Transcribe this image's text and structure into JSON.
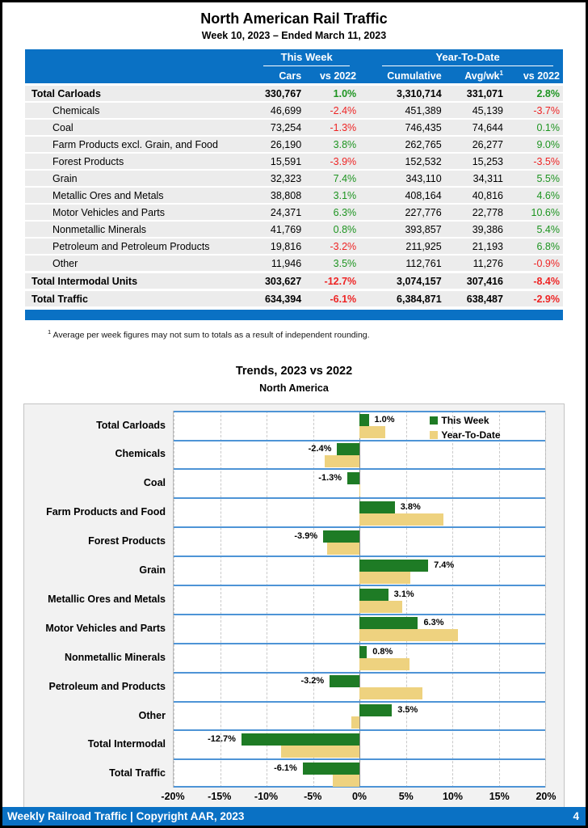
{
  "page": {
    "title": "North American Rail Traffic",
    "subtitle": "Week 10, 2023 – Ended March 11, 2023",
    "footnote_sup": "1",
    "footnote_text": "Average per week figures may not sum to totals as a result of independent rounding.",
    "footer_left": "Weekly Railroad Traffic | Copyright AAR, 2023",
    "footer_page": "4"
  },
  "colors": {
    "header_blue": "#0a71c4",
    "row_gray": "#ececec",
    "positive_green": "#1d9420",
    "negative_red": "#ee2424",
    "bar_green": "#1e7b25",
    "bar_tan": "#eed27f",
    "band_line_blue": "#4e94d6"
  },
  "table": {
    "group_headers": {
      "this_week": "This Week",
      "ytd": "Year-To-Date"
    },
    "col_headers": {
      "cars": "Cars",
      "vs2022_week": "vs 2022",
      "cumulative": "Cumulative",
      "avgwk": "Avg/wk",
      "avgwk_sup": "1",
      "vs2022_ytd": "vs 2022"
    },
    "rows": [
      {
        "label": "Total Carloads",
        "total": true,
        "cars": "330,767",
        "vs_week": "1.0%",
        "vs_week_dir": "pos",
        "cumulative": "3,310,714",
        "avgwk": "331,071",
        "vs_ytd": "2.8%",
        "vs_ytd_dir": "pos"
      },
      {
        "label": "Chemicals",
        "total": false,
        "cars": "46,699",
        "vs_week": "-2.4%",
        "vs_week_dir": "neg",
        "cumulative": "451,389",
        "avgwk": "45,139",
        "vs_ytd": "-3.7%",
        "vs_ytd_dir": "neg"
      },
      {
        "label": "Coal",
        "total": false,
        "cars": "73,254",
        "vs_week": "-1.3%",
        "vs_week_dir": "neg",
        "cumulative": "746,435",
        "avgwk": "74,644",
        "vs_ytd": "0.1%",
        "vs_ytd_dir": "pos"
      },
      {
        "label": "Farm Products excl. Grain, and Food",
        "total": false,
        "cars": "26,190",
        "vs_week": "3.8%",
        "vs_week_dir": "pos",
        "cumulative": "262,765",
        "avgwk": "26,277",
        "vs_ytd": "9.0%",
        "vs_ytd_dir": "pos"
      },
      {
        "label": "Forest Products",
        "total": false,
        "cars": "15,591",
        "vs_week": "-3.9%",
        "vs_week_dir": "neg",
        "cumulative": "152,532",
        "avgwk": "15,253",
        "vs_ytd": "-3.5%",
        "vs_ytd_dir": "neg"
      },
      {
        "label": "Grain",
        "total": false,
        "cars": "32,323",
        "vs_week": "7.4%",
        "vs_week_dir": "pos",
        "cumulative": "343,110",
        "avgwk": "34,311",
        "vs_ytd": "5.5%",
        "vs_ytd_dir": "pos"
      },
      {
        "label": "Metallic Ores and Metals",
        "total": false,
        "cars": "38,808",
        "vs_week": "3.1%",
        "vs_week_dir": "pos",
        "cumulative": "408,164",
        "avgwk": "40,816",
        "vs_ytd": "4.6%",
        "vs_ytd_dir": "pos"
      },
      {
        "label": "Motor Vehicles and Parts",
        "total": false,
        "cars": "24,371",
        "vs_week": "6.3%",
        "vs_week_dir": "pos",
        "cumulative": "227,776",
        "avgwk": "22,778",
        "vs_ytd": "10.6%",
        "vs_ytd_dir": "pos"
      },
      {
        "label": "Nonmetallic Minerals",
        "total": false,
        "cars": "41,769",
        "vs_week": "0.8%",
        "vs_week_dir": "pos",
        "cumulative": "393,857",
        "avgwk": "39,386",
        "vs_ytd": "5.4%",
        "vs_ytd_dir": "pos"
      },
      {
        "label": "Petroleum and Petroleum Products",
        "total": false,
        "cars": "19,816",
        "vs_week": "-3.2%",
        "vs_week_dir": "neg",
        "cumulative": "211,925",
        "avgwk": "21,193",
        "vs_ytd": "6.8%",
        "vs_ytd_dir": "pos"
      },
      {
        "label": "Other",
        "total": false,
        "cars": "11,946",
        "vs_week": "3.5%",
        "vs_week_dir": "pos",
        "cumulative": "112,761",
        "avgwk": "11,276",
        "vs_ytd": "-0.9%",
        "vs_ytd_dir": "neg"
      },
      {
        "label": "Total Intermodal Units",
        "total": true,
        "cars": "303,627",
        "vs_week": "-12.7%",
        "vs_week_dir": "neg",
        "cumulative": "3,074,157",
        "avgwk": "307,416",
        "vs_ytd": "-8.4%",
        "vs_ytd_dir": "neg"
      },
      {
        "label": "Total Traffic",
        "total": true,
        "cars": "634,394",
        "vs_week": "-6.1%",
        "vs_week_dir": "neg",
        "cumulative": "6,384,871",
        "avgwk": "638,487",
        "vs_ytd": "-2.9%",
        "vs_ytd_dir": "neg"
      }
    ]
  },
  "chart": {
    "title": "Trends, 2023 vs 2022",
    "subtitle": "North America"
  },
  "chart_data": {
    "type": "bar",
    "orientation": "horizontal",
    "title": "Trends, 2023 vs 2022",
    "subtitle": "North America",
    "xlim": [
      -20,
      20
    ],
    "x_tick_values": [
      -20,
      -15,
      -10,
      -5,
      0,
      5,
      10,
      15,
      20
    ],
    "x_tick_labels": [
      "-20%",
      "-15%",
      "-10%",
      "-5%",
      "0%",
      "5%",
      "10%",
      "15%",
      "20%"
    ],
    "grid": "vertical-dashed",
    "legend_position": "top-right-inside",
    "categories": [
      "Total Carloads",
      "Chemicals",
      "Coal",
      "Farm Products and Food",
      "Forest Products",
      "Grain",
      "Metallic Ores and Metals",
      "Motor Vehicles and Parts",
      "Nonmetallic Minerals",
      "Petroleum and Products",
      "Other",
      "Total Intermodal",
      "Total Traffic"
    ],
    "series": [
      {
        "name": "This Week",
        "color": "#1e7b25",
        "values": [
          1.0,
          -2.4,
          -1.3,
          3.8,
          -3.9,
          7.4,
          3.1,
          6.3,
          0.8,
          -3.2,
          3.5,
          -12.7,
          -6.1
        ]
      },
      {
        "name": "Year-To-Date",
        "color": "#eed27f",
        "values": [
          2.8,
          -3.7,
          0.1,
          9.0,
          -3.5,
          5.5,
          4.6,
          10.6,
          5.4,
          6.8,
          -0.9,
          -8.4,
          -2.9
        ]
      }
    ],
    "data_labels": [
      "1.0%",
      "-2.4%",
      "-1.3%",
      "3.8%",
      "-3.9%",
      "7.4%",
      "3.1%",
      "6.3%",
      "0.8%",
      "-3.2%",
      "3.5%",
      "-12.7%",
      "-6.1%"
    ]
  }
}
